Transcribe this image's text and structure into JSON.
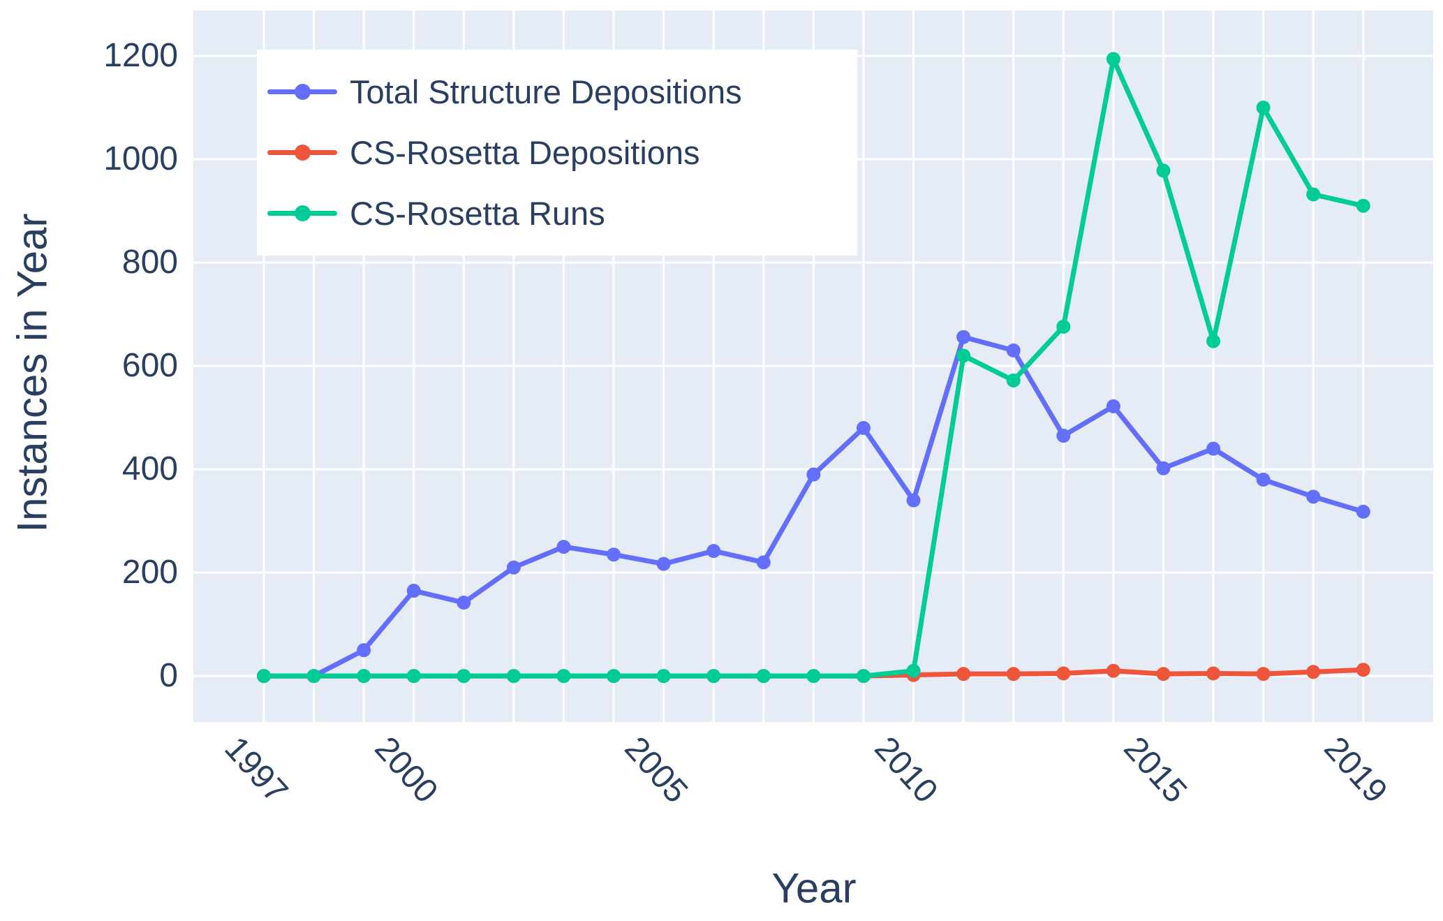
{
  "chart_data": {
    "type": "line",
    "title": "",
    "xlabel": "Year",
    "ylabel": "Instances in Year",
    "x": [
      1997,
      1998,
      1999,
      2000,
      2001,
      2002,
      2003,
      2004,
      2005,
      2006,
      2007,
      2008,
      2009,
      2010,
      2011,
      2012,
      2013,
      2014,
      2015,
      2016,
      2017,
      2018,
      2019
    ],
    "series": [
      {
        "name": "Total Structure Depositions",
        "color": "#636EFA",
        "values": [
          0,
          0,
          50,
          165,
          142,
          210,
          250,
          235,
          217,
          242,
          220,
          390,
          480,
          340,
          656,
          630,
          465,
          522,
          402,
          440,
          380,
          347,
          318
        ]
      },
      {
        "name": "CS-Rosetta Depositions",
        "color": "#EF553B",
        "values": [
          0,
          0,
          0,
          0,
          0,
          0,
          0,
          0,
          0,
          0,
          0,
          0,
          0,
          2,
          4,
          4,
          5,
          10,
          4,
          5,
          4,
          8,
          12
        ]
      },
      {
        "name": "CS-Rosetta Runs",
        "color": "#00CC96",
        "values": [
          0,
          0,
          0,
          0,
          0,
          0,
          0,
          0,
          0,
          0,
          0,
          0,
          0,
          10,
          620,
          572,
          676,
          1194,
          978,
          648,
          1100,
          932,
          910
        ]
      }
    ],
    "x_ticks": [
      1997,
      2000,
      2005,
      2010,
      2015,
      2019
    ],
    "y_ticks": [
      0,
      200,
      400,
      600,
      800,
      1000,
      1200
    ],
    "xlim": [
      1995.59,
      2020.4
    ],
    "ylim": [
      -89,
      1288
    ],
    "grid": true,
    "legend_position": "top-left",
    "plot_bg": "#E5ECF6",
    "grid_color": "#FFFFFF",
    "font_color": "#2A3F5F"
  }
}
